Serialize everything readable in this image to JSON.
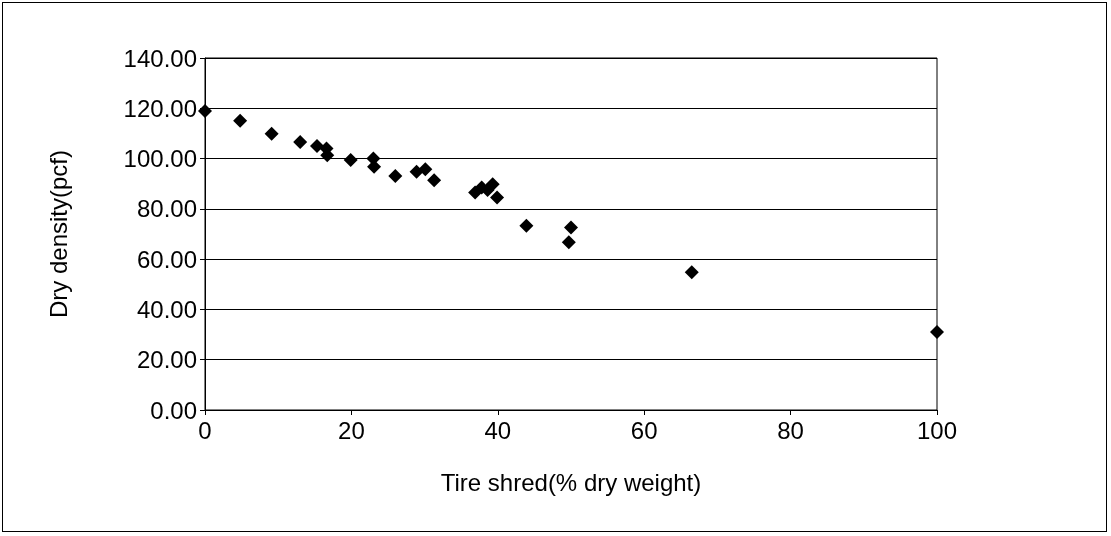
{
  "chart_data": {
    "type": "scatter",
    "xlabel": "Tire shred(% dry weight)",
    "ylabel": "Dry density(pcf)",
    "x": [
      0,
      4.8,
      9.1,
      13.0,
      15.3,
      16.6,
      16.7,
      19.9,
      23.0,
      23.1,
      26.0,
      28.9,
      30.1,
      31.3,
      36.9,
      37.8,
      38.6,
      39.3,
      39.9,
      43.9,
      50.0,
      49.7,
      66.5,
      100
    ],
    "values": [
      118.9,
      115.0,
      109.9,
      106.6,
      105.0,
      104.0,
      101.3,
      99.4,
      100.0,
      96.7,
      93.1,
      94.8,
      95.8,
      91.4,
      86.5,
      88.5,
      87.5,
      89.8,
      84.5,
      73.3,
      72.6,
      66.7,
      54.8,
      31
    ],
    "color": "#000000",
    "marker": "diamond",
    "xlim": [
      0,
      100
    ],
    "xticks": [
      0,
      20,
      40,
      60,
      80,
      100
    ],
    "ylim": [
      0,
      140
    ],
    "yticks": [
      {
        "value": 0,
        "label": "0.00"
      },
      {
        "value": 20,
        "label": "20.00"
      },
      {
        "value": 40,
        "label": "40.00"
      },
      {
        "value": 60,
        "label": "60.00"
      },
      {
        "value": 80,
        "label": "80.00"
      },
      {
        "value": 100,
        "label": "100.00"
      },
      {
        "value": 120,
        "label": "120.00"
      },
      {
        "value": 140,
        "label": "140.00"
      }
    ],
    "grid": "y"
  }
}
